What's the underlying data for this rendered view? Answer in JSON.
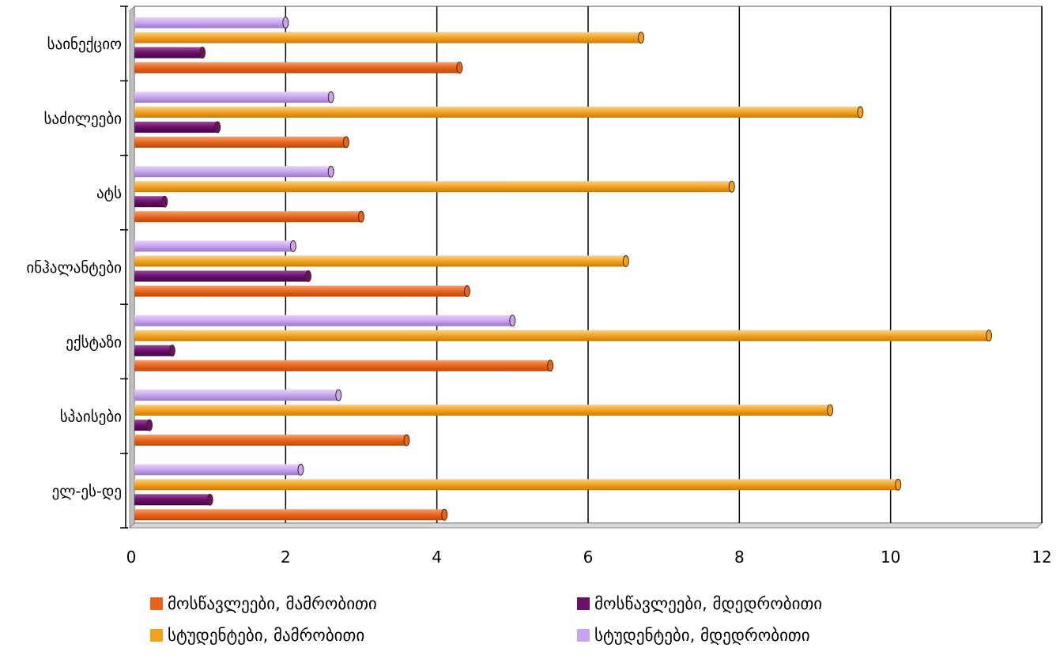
{
  "chart_data": {
    "type": "bar",
    "orientation": "horizontal",
    "categories": [
      "ელ-ეს-დე",
      "სპაისები",
      "ექსტაზი",
      "ინჰალანტები",
      "ატს",
      "საძილეები",
      "საინექციო"
    ],
    "series": [
      {
        "name": "მოსწავლეები, მამრობითი",
        "color": "#E8641A",
        "values": [
          4.1,
          3.6,
          5.5,
          4.4,
          3.0,
          2.8,
          4.3
        ]
      },
      {
        "name": "მოსწავლეები, მდედრობითი",
        "color": "#6B0F6B",
        "values": [
          1.0,
          0.2,
          0.5,
          2.3,
          0.4,
          1.1,
          0.9
        ]
      },
      {
        "name": "სტუდენტები, მამრობითი",
        "color": "#F4A21E",
        "values": [
          10.1,
          9.2,
          11.3,
          6.5,
          7.9,
          9.6,
          6.7
        ]
      },
      {
        "name": "სტუდენტები, მდედრობითი",
        "color": "#C9A4F0",
        "values": [
          2.2,
          2.7,
          5.0,
          2.1,
          2.6,
          2.6,
          2.0
        ]
      }
    ],
    "xlim": [
      0,
      12
    ],
    "xticks": [
      "0",
      "2",
      "4",
      "6",
      "8",
      "10",
      "12"
    ],
    "grid": true,
    "legend_position": "bottom"
  }
}
